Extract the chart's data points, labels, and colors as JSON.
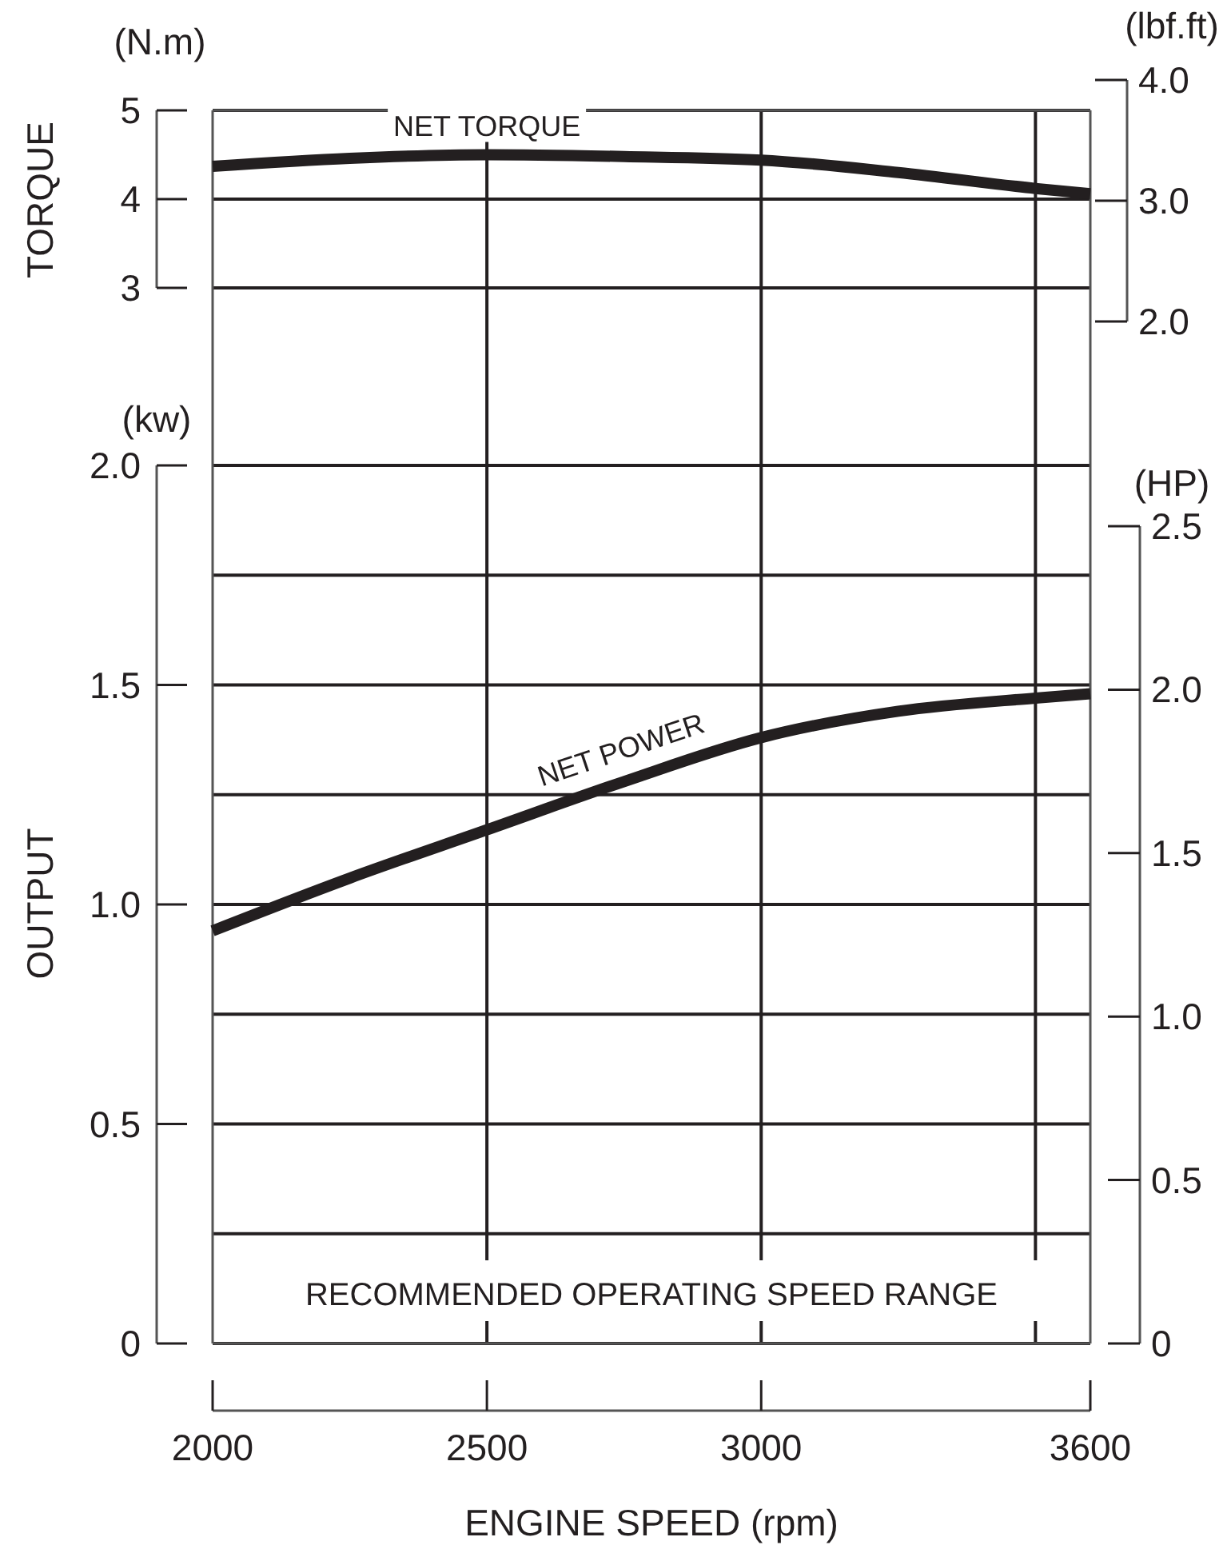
{
  "chart_data": [
    {
      "type": "line",
      "ylabel": "TORQUE",
      "y2label": "(lbf.ft)",
      "annotations": [
        "(N.m)"
      ],
      "x": [
        2000,
        2250,
        2500,
        2750,
        3000,
        3250,
        3500,
        3600
      ],
      "series": [
        {
          "name": "NET TORQUE",
          "color": "#231f20",
          "values": [
            4.37,
            4.46,
            4.5,
            4.48,
            4.44,
            4.3,
            4.12,
            4.06
          ]
        }
      ],
      "xlim": [
        2000,
        3600
      ],
      "xticks": [
        2000,
        2500,
        3000,
        3600
      ],
      "ylim": [
        3,
        5
      ],
      "yticks": [
        3,
        4,
        5
      ],
      "y2lim": [
        2.0,
        4.0
      ],
      "y2ticks": [
        {
          "value": 2,
          "label": "2.0"
        },
        {
          "value": 3,
          "label": "3.0"
        },
        {
          "value": 4,
          "label": "4.0"
        }
      ],
      "ref_lines": [
        {
          "axis": "x",
          "value": 3500,
          "color": "#231f20"
        }
      ],
      "grid": true,
      "tick_labels": "y",
      "line_style": "solid",
      "marker": "none"
    },
    {
      "type": "line",
      "ylabel": "OUTPUT",
      "y2label": "(HP)",
      "xlabel": "ENGINE SPEED (rpm)",
      "annotations": [
        "(kw)",
        "RECOMMENDED OPERATING SPEED RANGE"
      ],
      "x": [
        2000,
        2250,
        2500,
        2750,
        3000,
        3250,
        3500,
        3600
      ],
      "series": [
        {
          "name": "NET POWER",
          "color": "#231f20",
          "values": [
            0.94,
            1.06,
            1.17,
            1.28,
            1.38,
            1.44,
            1.47,
            1.48
          ]
        }
      ],
      "xlim": [
        2000,
        3600
      ],
      "xticks": [
        2000,
        2500,
        3000,
        3600
      ],
      "ylim": [
        0,
        2
      ],
      "yticks": [
        0,
        {
          "value": 0.25,
          "label": null
        },
        {
          "value": 0.5,
          "label": "0.5"
        },
        {
          "value": 0.75,
          "label": null
        },
        {
          "value": 1,
          "label": "1.0"
        },
        {
          "value": 1.25,
          "label": null
        },
        {
          "value": 1.5,
          "label": "1.5"
        },
        {
          "value": 1.75,
          "label": null
        },
        {
          "value": 2,
          "label": "2.0"
        }
      ],
      "y2lim": [
        0,
        2.5
      ],
      "y2ticks": [
        0,
        {
          "value": 0.5,
          "label": "0.5"
        },
        {
          "value": 1,
          "label": "1.0"
        },
        {
          "value": 1.5,
          "label": "1.5"
        },
        {
          "value": 2,
          "label": "2.0"
        },
        {
          "value": 2.5,
          "label": "2.5"
        }
      ],
      "ref_lines": [
        {
          "axis": "x",
          "value": 3500,
          "color": "#231f20"
        }
      ],
      "grid": true,
      "line_style": "solid",
      "marker": "none"
    }
  ]
}
